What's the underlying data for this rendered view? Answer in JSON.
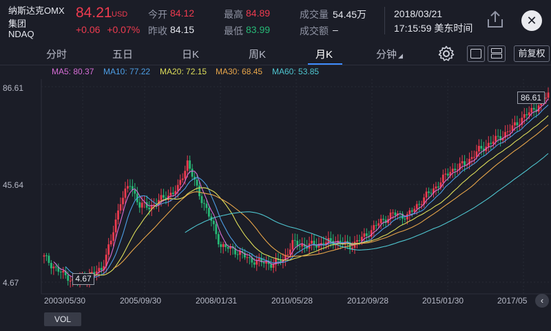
{
  "stock": {
    "name_line1": "纳斯达克OMX",
    "name_line2": "集团",
    "code": "NDAQ",
    "price": "84.21",
    "currency": "USD",
    "change": "+0.06",
    "change_pct": "+0.07%"
  },
  "quotes": {
    "open_label": "今开",
    "open_value": "84.12",
    "prev_close_label": "昨收",
    "prev_close_value": "84.15",
    "high_label": "最高",
    "high_value": "84.89",
    "low_label": "最低",
    "low_value": "83.99",
    "volume_label": "成交量",
    "volume_value": "54.45万",
    "turnover_label": "成交额",
    "turnover_value": "–"
  },
  "datetime": {
    "date": "2018/03/21",
    "time": "17:15:59 美东时间"
  },
  "tabs": [
    {
      "label": "分时"
    },
    {
      "label": "五日"
    },
    {
      "label": "日K"
    },
    {
      "label": "周K"
    },
    {
      "label": "月K"
    },
    {
      "label": "分钟"
    }
  ],
  "active_tab": "月K",
  "toolbar": {
    "adjust_label": "前复权"
  },
  "ma_legend": [
    {
      "label": "MA5: 80.37",
      "color": "#d66dd6"
    },
    {
      "label": "MA10: 77.22",
      "color": "#4d9fe6"
    },
    {
      "label": "MA20: 72.15",
      "color": "#dede5a"
    },
    {
      "label": "MA30: 68.45",
      "color": "#e8a64a"
    },
    {
      "label": "MA60: 53.85",
      "color": "#4fc6d0"
    }
  ],
  "chart_data": {
    "type": "candlestick",
    "y_ticks": [
      "86.61",
      "45.64",
      "4.67"
    ],
    "ylim": [
      4.67,
      86.61
    ],
    "x_ticks": [
      "2003/05/30",
      "2005/09/30",
      "2008/01/31",
      "2010/05/28",
      "2012/09/28",
      "2015/01/30",
      "2017/05"
    ],
    "max_label": "86.61",
    "min_label": "4.67",
    "colors": {
      "up": "#ee3b4f",
      "down": "#27b876"
    }
  },
  "bottom": {
    "vol_label": "VOL"
  }
}
